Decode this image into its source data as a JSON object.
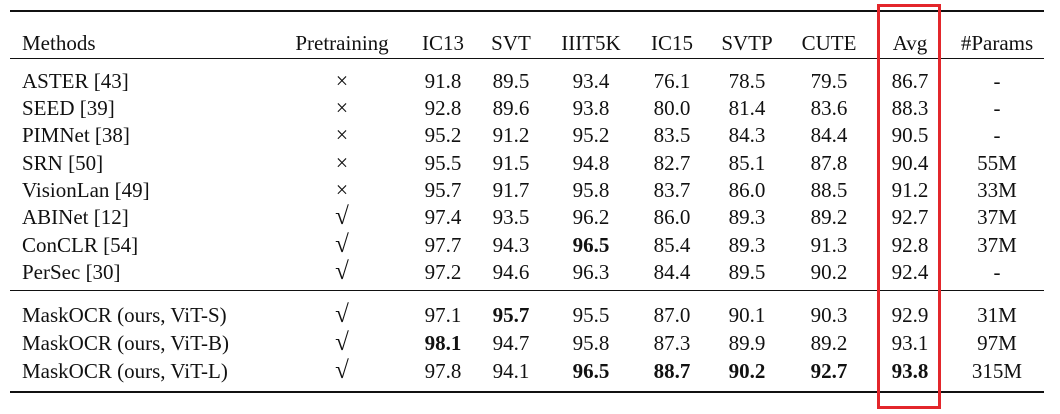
{
  "table": {
    "columns": [
      "Methods",
      "Pretraining",
      "IC13",
      "SVT",
      "IIIT5K",
      "IC15",
      "SVTP",
      "CUTE",
      "Avg",
      "#Params"
    ],
    "rows": [
      [
        "ASTER [43]",
        "×",
        "91.8",
        "89.5",
        "93.4",
        "76.1",
        "78.5",
        "79.5",
        "86.7",
        "-"
      ],
      [
        "SEED [39]",
        "×",
        "92.8",
        "89.6",
        "93.8",
        "80.0",
        "81.4",
        "83.6",
        "88.3",
        "-"
      ],
      [
        "PIMNet [38]",
        "×",
        "95.2",
        "91.2",
        "95.2",
        "83.5",
        "84.3",
        "84.4",
        "90.5",
        "-"
      ],
      [
        "SRN [50]",
        "×",
        "95.5",
        "91.5",
        "94.8",
        "82.7",
        "85.1",
        "87.8",
        "90.4",
        "55M"
      ],
      [
        "VisionLan [49]",
        "×",
        "95.7",
        "91.7",
        "95.8",
        "83.7",
        "86.0",
        "88.5",
        "91.2",
        "33M"
      ],
      [
        "ABINet [12]",
        "√",
        "97.4",
        "93.5",
        "96.2",
        "86.0",
        "89.3",
        "89.2",
        "92.7",
        "37M"
      ],
      [
        "ConCLR [54]",
        "√",
        "97.7",
        "94.3",
        "96.5",
        "85.4",
        "89.3",
        "91.3",
        "92.8",
        "37M"
      ],
      [
        "PerSec [30]",
        "√",
        "97.2",
        "94.6",
        "96.3",
        "84.4",
        "89.5",
        "90.2",
        "92.4",
        "-"
      ],
      [
        "MaskOCR (ours, ViT-S)",
        "√",
        "97.1",
        "95.7",
        "95.5",
        "87.0",
        "90.1",
        "90.3",
        "92.9",
        "31M"
      ],
      [
        "MaskOCR (ours, ViT-B)",
        "√",
        "98.1",
        "94.7",
        "95.8",
        "87.3",
        "89.9",
        "89.2",
        "93.1",
        "97M"
      ],
      [
        "MaskOCR (ours, ViT-L)",
        "√",
        "97.8",
        "94.1",
        "96.5",
        "88.7",
        "90.2",
        "92.7",
        "93.8",
        "315M"
      ]
    ],
    "bold_cells": [
      [
        6,
        4
      ],
      [
        8,
        3
      ],
      [
        9,
        2
      ],
      [
        10,
        4
      ],
      [
        10,
        5
      ],
      [
        10,
        6
      ],
      [
        10,
        7
      ],
      [
        10,
        8
      ]
    ],
    "highlight_column": "Avg",
    "highlight_color": "#e3262b"
  }
}
